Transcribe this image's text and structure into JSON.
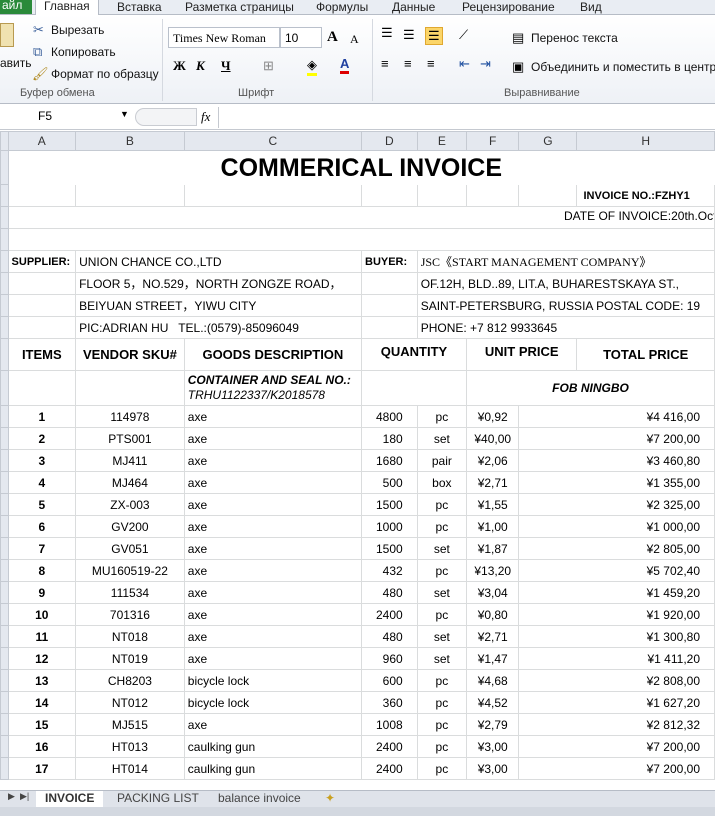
{
  "ribbon_tabs": [
    "айл",
    "Главная",
    "Вставка",
    "Разметка страницы",
    "Формулы",
    "Данные",
    "Рецензирование",
    "Вид"
  ],
  "clipboard": {
    "paste": "авить",
    "cut": "Вырезать",
    "copy": "Копировать",
    "format_painter": "Формат по образцу",
    "group": "Буфер обмена"
  },
  "font": {
    "name": "Times New Roman",
    "size": "10",
    "bold": "Ж",
    "italic": "К",
    "underline": "Ч",
    "group": "Шрифт"
  },
  "alignment": {
    "wrap": "Перенос текста",
    "merge": "Объединить и поместить в центре",
    "group": "Выравнивание"
  },
  "formula_bar": {
    "cell": "F5",
    "fx": "fx",
    "value": ""
  },
  "columns": [
    "A",
    "B",
    "C",
    "D",
    "E",
    "F",
    "G",
    "H"
  ],
  "invoice": {
    "title": "COMMERICAL INVOICE",
    "invoice_no": "INVOICE NO.:FZHY1",
    "date": "DATE OF INVOICE:20th.Oct",
    "supplier_label": "SUPPLIER:",
    "supplier": [
      "UNION CHANCE CO.,LTD",
      "FLOOR 5，NO.529，NORTH ZONGZE ROAD，",
      "BEIYUAN STREET，YIWU CITY",
      "PIC:ADRIAN HU   TEL.:(0579)-85096049"
    ],
    "buyer_label": "BUYER:",
    "buyer": [
      "JSC《START MANAGEMENT COMPANY》",
      "OF.12H, BLD..89, LIT.A, BUHARESTSKAYA ST.,",
      "SAINT-PETERSBURG, RUSSIA POSTAL CODE: 19",
      "PHONE: +7 812 9933645"
    ],
    "headers": [
      "ITEMS",
      "VENDOR SKU#",
      "GOODS DESCRIPTION",
      "QUANTITY",
      "UNIT PRICE",
      "TOTAL PRICE"
    ],
    "container_label": "CONTAINER AND SEAL NO.:",
    "container_no": "TRHU1122337/K2018578",
    "terms": "FOB NINGBO",
    "rows": [
      [
        "1",
        "114978",
        "axe",
        "4800",
        "pc",
        "¥0,92",
        "¥4 416,00"
      ],
      [
        "2",
        "PTS001",
        "axe",
        "180",
        "set",
        "¥40,00",
        "¥7 200,00"
      ],
      [
        "3",
        "MJ411",
        "axe",
        "1680",
        "pair",
        "¥2,06",
        "¥3 460,80"
      ],
      [
        "4",
        "MJ464",
        "axe",
        "500",
        "box",
        "¥2,71",
        "¥1 355,00"
      ],
      [
        "5",
        "ZX-003",
        "axe",
        "1500",
        "pc",
        "¥1,55",
        "¥2 325,00"
      ],
      [
        "6",
        "GV200",
        "axe",
        "1000",
        "pc",
        "¥1,00",
        "¥1 000,00"
      ],
      [
        "7",
        "GV051",
        "axe",
        "1500",
        "set",
        "¥1,87",
        "¥2 805,00"
      ],
      [
        "8",
        "MU160519-22",
        "axe",
        "432",
        "pc",
        "¥13,20",
        "¥5 702,40"
      ],
      [
        "9",
        "111534",
        "axe",
        "480",
        "set",
        "¥3,04",
        "¥1 459,20"
      ],
      [
        "10",
        "701316",
        "axe",
        "2400",
        "pc",
        "¥0,80",
        "¥1 920,00"
      ],
      [
        "11",
        "NT018",
        "axe",
        "480",
        "set",
        "¥2,71",
        "¥1 300,80"
      ],
      [
        "12",
        "NT019",
        "axe",
        "960",
        "set",
        "¥1,47",
        "¥1 411,20"
      ],
      [
        "13",
        "CH8203",
        "bicycle lock",
        "600",
        "pc",
        "¥4,68",
        "¥2 808,00"
      ],
      [
        "14",
        "NT012",
        "bicycle lock",
        "360",
        "pc",
        "¥4,52",
        "¥1 627,20"
      ],
      [
        "15",
        "MJ515",
        "axe",
        "1008",
        "pc",
        "¥2,79",
        "¥2 812,32"
      ],
      [
        "16",
        "HT013",
        "caulking gun",
        "2400",
        "pc",
        "¥3,00",
        "¥7 200,00"
      ],
      [
        "17",
        "HT014",
        "caulking gun",
        "2400",
        "pc",
        "¥3,00",
        "¥7 200,00"
      ]
    ]
  },
  "sheet_tabs": [
    "INVOICE",
    "PACKING LIST",
    "balance invoice"
  ]
}
